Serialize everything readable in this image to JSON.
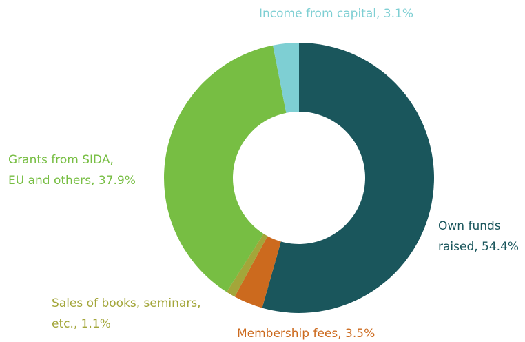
{
  "chart_data": {
    "type": "donut",
    "labels": [
      [
        "Own funds",
        "raised, 54.4%"
      ],
      [
        "Membership fees, 3.5%"
      ],
      [
        "Sales of books, seminars,",
        "etc., 1.1%"
      ],
      [
        "Grants from SIDA,",
        "EU and others, 37.9%"
      ],
      [
        "Income from capital, 3.1%"
      ]
    ],
    "values": [
      54.4,
      3.5,
      1.1,
      37.9,
      3.1
    ],
    "colors": [
      "#1a565c",
      "#cc6a1e",
      "#a3a63a",
      "#77be43",
      "#7ecfd3"
    ]
  }
}
